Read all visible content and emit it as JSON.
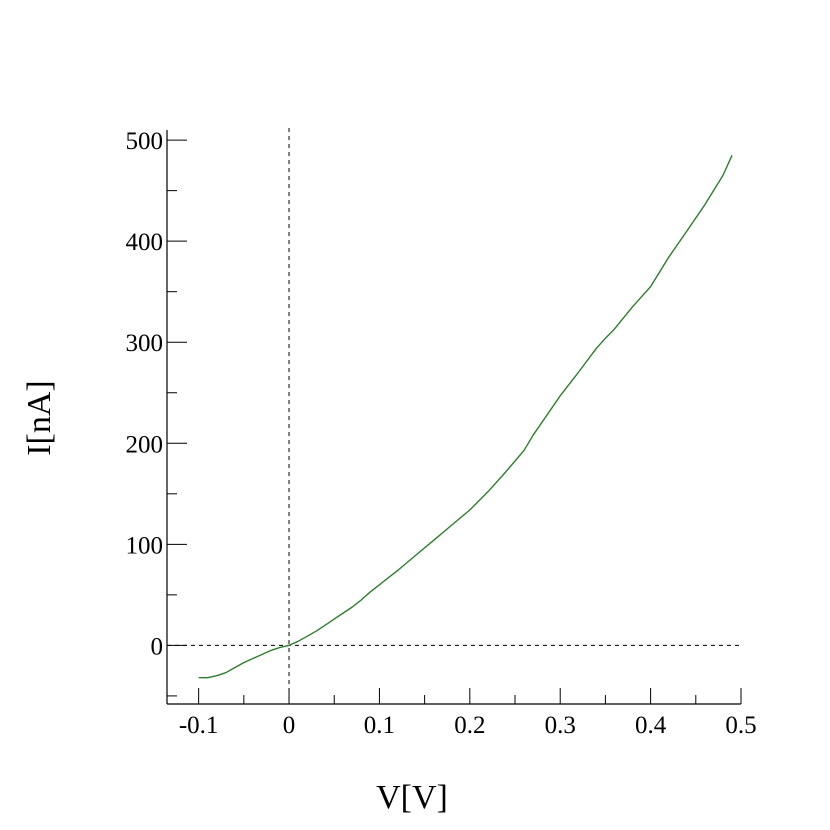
{
  "chart_data": {
    "type": "line",
    "title": "",
    "xlabel": "V[V]",
    "ylabel": "I[nA]",
    "xlim": [
      -0.135,
      0.5
    ],
    "ylim": [
      -58,
      510
    ],
    "x_major_ticks": [
      -0.1,
      0,
      0.1,
      0.2,
      0.3,
      0.4,
      0.5
    ],
    "x_tick_labels": [
      "-0.1",
      "0",
      "0.1",
      "0.2",
      "0.3",
      "0.4",
      "0.5"
    ],
    "x_minor_step": 0.05,
    "y_major_ticks": [
      0,
      100,
      200,
      300,
      400,
      500
    ],
    "y_tick_labels": [
      "0",
      "100",
      "200",
      "300",
      "400",
      "500"
    ],
    "y_minor_step": 50,
    "reference_lines": {
      "x_zero_dashed": true,
      "y_zero_dashed": true
    },
    "grid": false,
    "legend": false,
    "series": [
      {
        "color": "#2e7d2e",
        "x": [
          -0.1,
          -0.09,
          -0.08,
          -0.07,
          -0.06,
          -0.05,
          -0.04,
          -0.03,
          -0.02,
          -0.01,
          0,
          0.01,
          0.02,
          0.03,
          0.04,
          0.05,
          0.06,
          0.07,
          0.08,
          0.09,
          0.1,
          0.12,
          0.14,
          0.16,
          0.18,
          0.2,
          0.22,
          0.24,
          0.26,
          0.27,
          0.28,
          0.3,
          0.32,
          0.34,
          0.35,
          0.36,
          0.38,
          0.4,
          0.42,
          0.44,
          0.46,
          0.48,
          0.49
        ],
        "y": [
          -32,
          -32,
          -30,
          -27,
          -22,
          -17,
          -13,
          -9,
          -5,
          -2,
          0,
          4,
          9,
          14,
          20,
          26,
          32,
          38,
          45,
          53,
          60,
          74,
          89,
          104,
          119,
          134,
          152,
          172,
          193,
          208,
          221,
          247,
          270,
          294,
          304,
          313,
          335,
          355,
          384,
          410,
          436,
          465,
          485
        ]
      }
    ]
  }
}
